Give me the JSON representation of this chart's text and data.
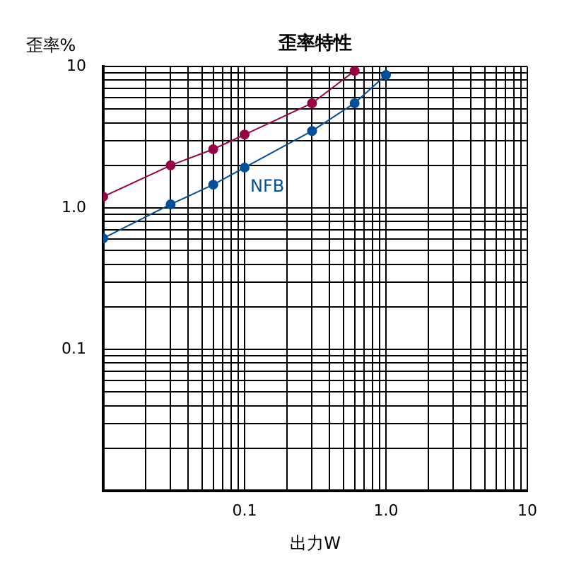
{
  "chart_data": {
    "type": "line",
    "title": "歪率特性",
    "xlabel": "出力W",
    "ylabel": "歪率%",
    "log": "xy",
    "grid": true,
    "legend": false,
    "marker": "circle",
    "line_style": "solid",
    "xlim": [
      0.01,
      10
    ],
    "ylim": [
      0.01,
      10
    ],
    "xticks": [
      {
        "value": 0.01,
        "label": null
      },
      {
        "value": 0.02,
        "label": null
      },
      {
        "value": 0.03,
        "label": null
      },
      {
        "value": 0.04,
        "label": null
      },
      {
        "value": 0.05,
        "label": null
      },
      {
        "value": 0.06,
        "label": null
      },
      {
        "value": 0.07,
        "label": null
      },
      {
        "value": 0.08,
        "label": null
      },
      {
        "value": 0.09,
        "label": null
      },
      {
        "value": 0.1,
        "label": "0.1"
      },
      {
        "value": 0.2,
        "label": null
      },
      {
        "value": 0.3,
        "label": null
      },
      {
        "value": 0.4,
        "label": null
      },
      {
        "value": 0.5,
        "label": null
      },
      {
        "value": 0.6,
        "label": null
      },
      {
        "value": 0.7,
        "label": null
      },
      {
        "value": 0.8,
        "label": null
      },
      {
        "value": 0.9,
        "label": null
      },
      {
        "value": 1,
        "label": "1.0"
      },
      {
        "value": 2,
        "label": null
      },
      {
        "value": 3,
        "label": null
      },
      {
        "value": 4,
        "label": null
      },
      {
        "value": 5,
        "label": null
      },
      {
        "value": 6,
        "label": null
      },
      {
        "value": 7,
        "label": null
      },
      {
        "value": 8,
        "label": null
      },
      {
        "value": 9,
        "label": null
      },
      10
    ],
    "yticks": [
      {
        "value": 0.01,
        "label": null
      },
      {
        "value": 0.02,
        "label": null
      },
      {
        "value": 0.03,
        "label": null
      },
      {
        "value": 0.04,
        "label": null
      },
      {
        "value": 0.05,
        "label": null
      },
      {
        "value": 0.06,
        "label": null
      },
      {
        "value": 0.07,
        "label": null
      },
      {
        "value": 0.08,
        "label": null
      },
      {
        "value": 0.09,
        "label": null
      },
      {
        "value": 0.1,
        "label": "0.1"
      },
      {
        "value": 0.2,
        "label": null
      },
      {
        "value": 0.3,
        "label": null
      },
      {
        "value": 0.4,
        "label": null
      },
      {
        "value": 0.5,
        "label": null
      },
      {
        "value": 0.6,
        "label": null
      },
      {
        "value": 0.7,
        "label": null
      },
      {
        "value": 0.8,
        "label": null
      },
      {
        "value": 0.9,
        "label": null
      },
      {
        "value": 1,
        "label": "1.0"
      },
      {
        "value": 2,
        "label": null
      },
      {
        "value": 3,
        "label": null
      },
      {
        "value": 4,
        "label": null
      },
      {
        "value": 5,
        "label": null
      },
      {
        "value": 6,
        "label": null
      },
      {
        "value": 7,
        "label": null
      },
      {
        "value": 8,
        "label": null
      },
      {
        "value": 9,
        "label": null
      },
      10
    ],
    "series": [
      {
        "color": "#990044",
        "x": [
          0.01,
          0.03,
          0.06,
          0.1,
          0.3,
          0.6
        ],
        "values": [
          1.2,
          2.0,
          2.6,
          3.3,
          5.5,
          9.3
        ]
      },
      {
        "name": "NFB",
        "color": "#004f99",
        "x": [
          0.01,
          0.03,
          0.06,
          0.1,
          0.3,
          0.6,
          1.0
        ],
        "values": [
          0.61,
          1.06,
          1.46,
          1.93,
          3.5,
          5.5,
          8.7
        ]
      }
    ]
  }
}
